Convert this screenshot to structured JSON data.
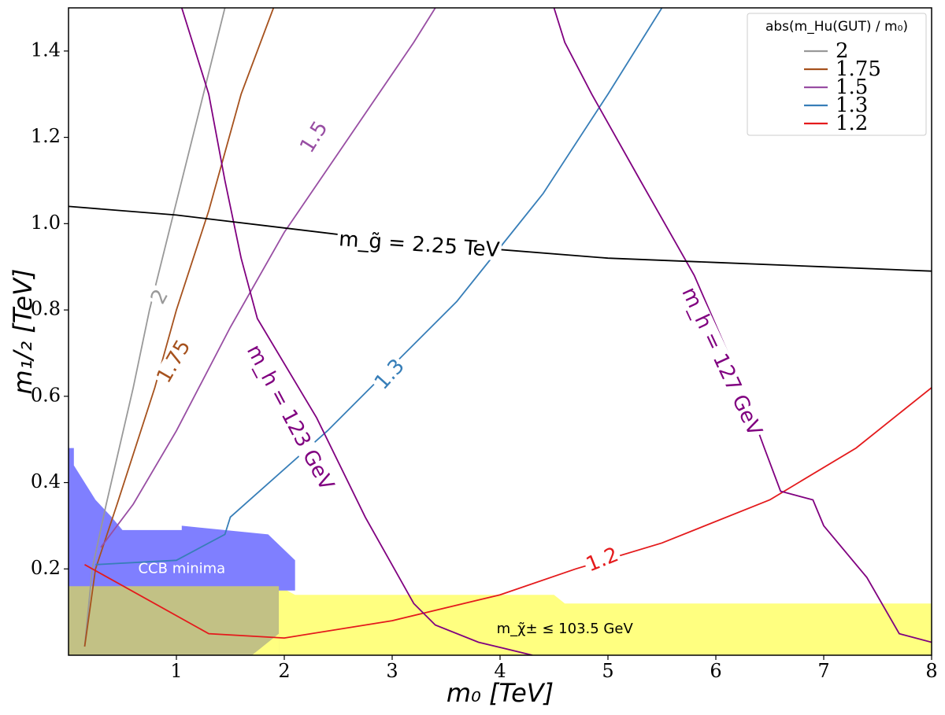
{
  "chart_data": {
    "type": "line",
    "xlabel": "m₀ [TeV]",
    "ylabel": "m₁/₂ [TeV]",
    "xlim": [
      0,
      8
    ],
    "ylim": [
      0,
      1.5
    ],
    "x_ticks": [
      "1",
      "2",
      "3",
      "4",
      "5",
      "6",
      "7",
      "8"
    ],
    "y_ticks": [
      "0.2",
      "0.4",
      "0.6",
      "0.8",
      "1.0",
      "1.2",
      "1.4"
    ],
    "grid": false,
    "legend": {
      "title": "abs(m_Hu(GUT) / m₀)",
      "placement": "top-right",
      "entries": [
        {
          "label": "2",
          "color": "#999999"
        },
        {
          "label": "1.75",
          "color": "#a6521e"
        },
        {
          "label": "1.5",
          "color": "#984ea3"
        },
        {
          "label": "1.3",
          "color": "#377eb8"
        },
        {
          "label": "1.2",
          "color": "#e41a1c"
        }
      ]
    },
    "series": [
      {
        "name": "2",
        "color": "#999999",
        "label": "2",
        "points": [
          [
            0.15,
            0.02
          ],
          [
            0.22,
            0.2
          ],
          [
            0.35,
            0.35
          ],
          [
            0.6,
            0.62
          ],
          [
            0.75,
            0.8
          ],
          [
            1.0,
            1.05
          ],
          [
            1.25,
            1.3
          ],
          [
            1.45,
            1.5
          ]
        ]
      },
      {
        "name": "1.75",
        "color": "#a6521e",
        "label": "1.75",
        "points": [
          [
            0.15,
            0.02
          ],
          [
            0.25,
            0.2
          ],
          [
            0.45,
            0.35
          ],
          [
            0.8,
            0.62
          ],
          [
            1.0,
            0.8
          ],
          [
            1.3,
            1.03
          ],
          [
            1.6,
            1.3
          ],
          [
            1.9,
            1.5
          ]
        ]
      },
      {
        "name": "1.5",
        "color": "#984ea3",
        "label": "1.5",
        "points": [
          [
            0.3,
            0.25
          ],
          [
            0.6,
            0.35
          ],
          [
            1.0,
            0.52
          ],
          [
            1.5,
            0.76
          ],
          [
            2.0,
            0.98
          ],
          [
            2.6,
            1.2
          ],
          [
            3.2,
            1.42
          ],
          [
            3.4,
            1.5
          ]
        ]
      },
      {
        "name": "1.3",
        "color": "#377eb8",
        "label": "1.3",
        "points": [
          [
            0.25,
            0.21
          ],
          [
            1.0,
            0.22
          ],
          [
            1.45,
            0.28
          ],
          [
            1.5,
            0.32
          ],
          [
            2.4,
            0.52
          ],
          [
            3.6,
            0.82
          ],
          [
            4.4,
            1.07
          ],
          [
            5.0,
            1.3
          ],
          [
            5.5,
            1.5
          ]
        ]
      },
      {
        "name": "1.2",
        "color": "#e41a1c",
        "label": "1.2",
        "points": [
          [
            0.15,
            0.21
          ],
          [
            1.3,
            0.05
          ],
          [
            2.0,
            0.04
          ],
          [
            3.0,
            0.08
          ],
          [
            4.0,
            0.14
          ],
          [
            4.7,
            0.2
          ],
          [
            5.5,
            0.26
          ],
          [
            6.5,
            0.36
          ],
          [
            7.3,
            0.48
          ],
          [
            8.0,
            0.62
          ]
        ]
      }
    ],
    "contours": [
      {
        "label": "m_h = 123 GeV",
        "color": "#800080",
        "points": [
          [
            1.05,
            1.5
          ],
          [
            1.3,
            1.3
          ],
          [
            1.45,
            1.1
          ],
          [
            1.6,
            0.92
          ],
          [
            1.75,
            0.78
          ],
          [
            2.3,
            0.55
          ],
          [
            2.75,
            0.32
          ],
          [
            3.2,
            0.12
          ],
          [
            3.4,
            0.07
          ],
          [
            3.8,
            0.03
          ],
          [
            4.3,
            0.0
          ]
        ]
      },
      {
        "label": "m_h = 127 GeV",
        "color": "#800080",
        "points": [
          [
            4.5,
            1.5
          ],
          [
            4.6,
            1.42
          ],
          [
            4.85,
            1.3
          ],
          [
            5.3,
            1.1
          ],
          [
            5.8,
            0.88
          ],
          [
            6.2,
            0.65
          ],
          [
            6.45,
            0.48
          ],
          [
            6.6,
            0.38
          ],
          [
            6.9,
            0.36
          ],
          [
            7.0,
            0.3
          ],
          [
            7.4,
            0.18
          ],
          [
            7.7,
            0.05
          ],
          [
            8.0,
            0.03
          ]
        ]
      },
      {
        "label": "m_g̃ = 2.25 TeV",
        "color": "#000000",
        "points": [
          [
            0.0,
            1.04
          ],
          [
            1.0,
            1.02
          ],
          [
            2.0,
            0.99
          ],
          [
            3.0,
            0.96
          ],
          [
            4.0,
            0.94
          ],
          [
            5.0,
            0.92
          ],
          [
            6.0,
            0.91
          ],
          [
            7.0,
            0.9
          ],
          [
            8.0,
            0.89
          ]
        ]
      }
    ],
    "regions": [
      {
        "label": "CCB minima",
        "color": "#7f7fff",
        "points": [
          [
            0,
            0.48
          ],
          [
            0.05,
            0.48
          ],
          [
            0.05,
            0.44
          ],
          [
            0.25,
            0.36
          ],
          [
            0.4,
            0.32
          ],
          [
            0.5,
            0.29
          ],
          [
            1.05,
            0.29
          ],
          [
            1.05,
            0.3
          ],
          [
            1.85,
            0.28
          ],
          [
            2.1,
            0.22
          ],
          [
            2.1,
            0.15
          ],
          [
            0,
            0.15
          ]
        ]
      },
      {
        "label": "m_χ̃± ≤ 103.5 GeV",
        "color": "#ffff80",
        "points": [
          [
            0,
            0.16
          ],
          [
            1.95,
            0.16
          ],
          [
            2.1,
            0.14
          ],
          [
            4.5,
            0.14
          ],
          [
            4.6,
            0.12
          ],
          [
            8.0,
            0.12
          ],
          [
            8.0,
            0.0
          ],
          [
            0,
            0.0
          ]
        ]
      }
    ],
    "annotations": {
      "ccb": "CCB minima",
      "chargino": "m_χ̃± ≤ 103.5 GeV",
      "gluino": "m_g̃ = 2.25 TeV",
      "higgs123": "m_h = 123 GeV",
      "higgs127": "m_h = 127 GeV"
    }
  }
}
